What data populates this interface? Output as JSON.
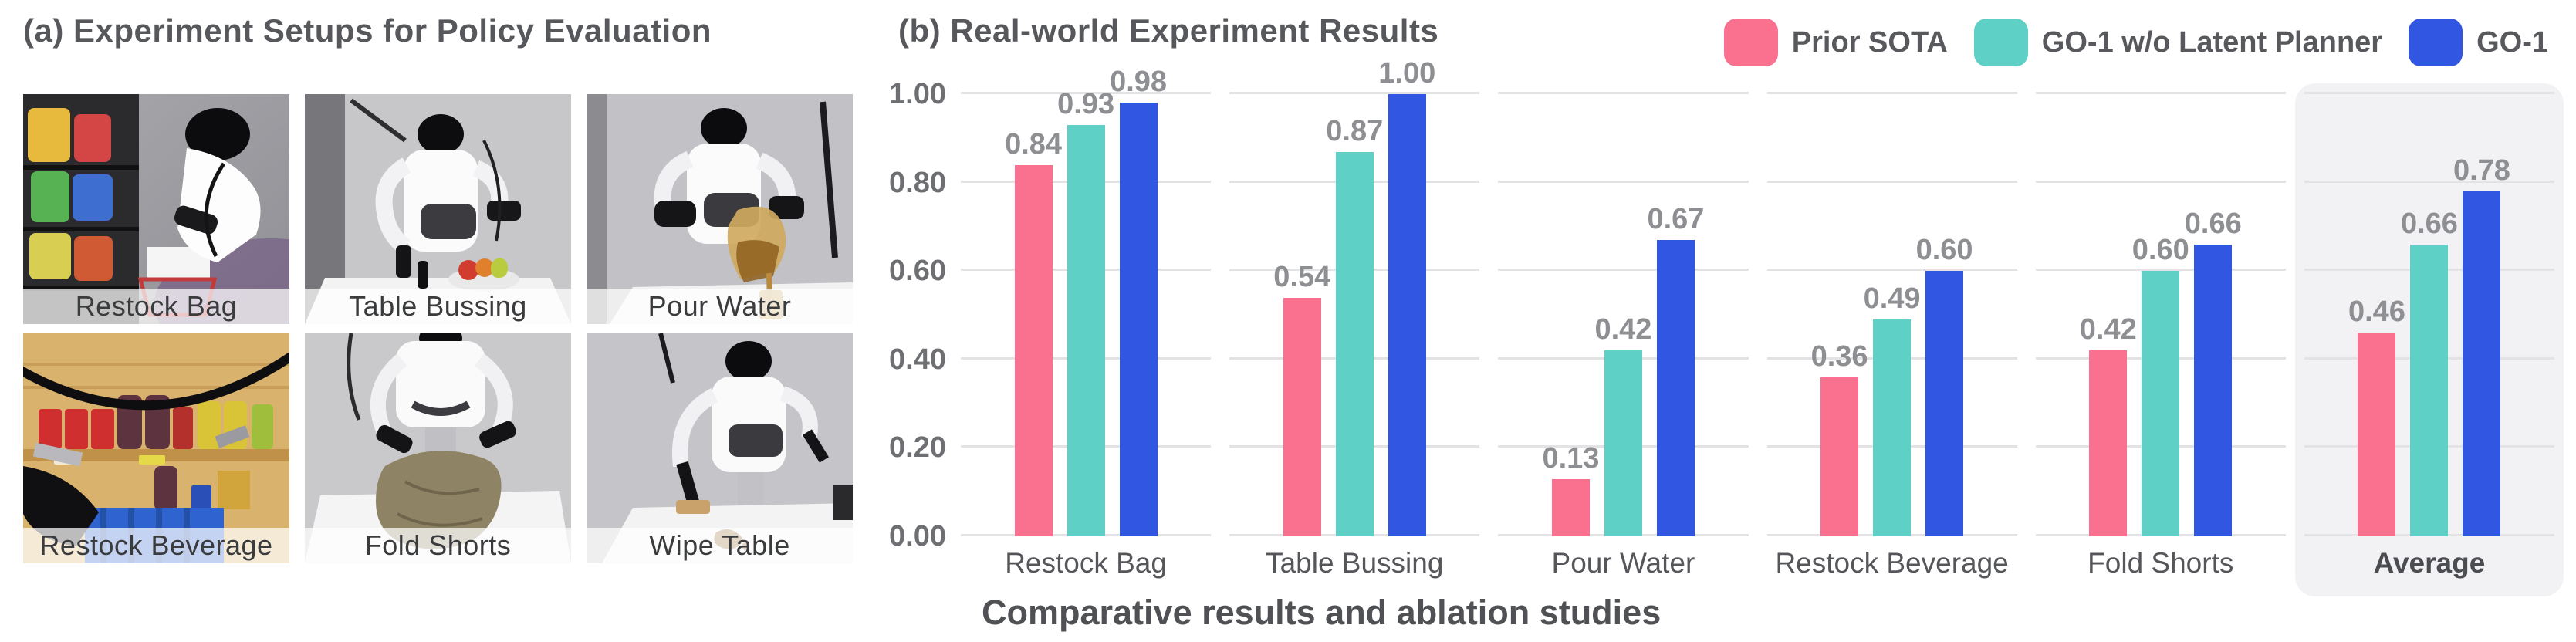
{
  "panel_a": {
    "title": "(a) Experiment Setups for Policy Evaluation",
    "images": [
      {
        "label": "Restock Bag"
      },
      {
        "label": "Table Bussing"
      },
      {
        "label": "Pour Water"
      },
      {
        "label": "Restock Beverage"
      },
      {
        "label": "Fold Shorts"
      },
      {
        "label": "Wipe Table"
      }
    ]
  },
  "panel_b": {
    "title": "(b) Real-world Experiment Results",
    "caption": "Comparative results and ablation studies"
  },
  "chart_data": {
    "type": "bar",
    "title": "(b) Real-world Experiment Results",
    "categories": [
      "Restock Bag",
      "Table Bussing",
      "Pour Water",
      "Restock Beverage",
      "Fold Shorts",
      "Average"
    ],
    "series": [
      {
        "name": "Prior SOTA",
        "color": "#F9718F",
        "values": [
          0.84,
          0.54,
          0.13,
          0.36,
          0.42,
          0.46
        ]
      },
      {
        "name": "GO-1 w/o Latent Planner",
        "color": "#5ED0C5",
        "values": [
          0.93,
          0.87,
          0.42,
          0.49,
          0.6,
          0.66
        ]
      },
      {
        "name": "GO-1",
        "color": "#3156E2",
        "values": [
          0.98,
          1.0,
          0.67,
          0.6,
          0.66,
          0.78
        ]
      }
    ],
    "ylim": [
      0,
      1.0
    ],
    "yticks": [
      "0.00",
      "0.20",
      "0.40",
      "0.60",
      "0.80",
      "1.00"
    ],
    "xlabel": "",
    "ylabel": "",
    "grid": true,
    "legend_position": "top-right",
    "highlighted_category": "Average",
    "value_label_decimals": 2
  }
}
